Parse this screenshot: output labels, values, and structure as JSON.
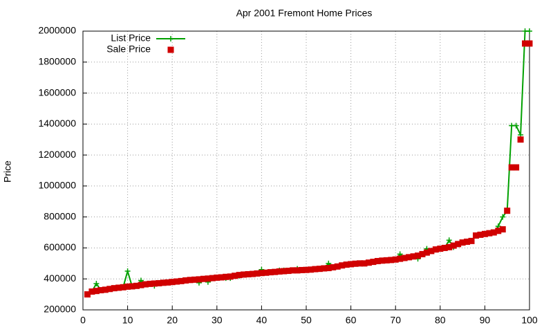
{
  "chart_data": {
    "type": "line",
    "title": "Apr 2001 Fremont Home Prices",
    "y_label": "Price",
    "x": [
      1,
      2,
      3,
      4,
      5,
      6,
      7,
      8,
      9,
      10,
      11,
      12,
      13,
      14,
      15,
      16,
      17,
      18,
      19,
      20,
      21,
      22,
      23,
      24,
      25,
      26,
      27,
      28,
      29,
      30,
      31,
      32,
      33,
      34,
      35,
      36,
      37,
      38,
      39,
      40,
      41,
      42,
      43,
      44,
      45,
      46,
      47,
      48,
      49,
      50,
      51,
      52,
      53,
      54,
      55,
      56,
      57,
      58,
      59,
      60,
      61,
      62,
      63,
      64,
      65,
      66,
      67,
      68,
      69,
      70,
      71,
      72,
      73,
      74,
      75,
      76,
      77,
      78,
      79,
      80,
      81,
      82,
      83,
      84,
      85,
      86,
      87,
      88,
      89,
      90,
      91,
      92,
      93,
      94,
      95,
      96,
      97,
      98,
      99,
      100
    ],
    "series": [
      {
        "name": "List Price",
        "color": "#00a000",
        "style": "linespoints",
        "values": [
          300000,
          318000,
          370000,
          327000,
          330000,
          335000,
          340000,
          343000,
          346000,
          450000,
          352000,
          355000,
          390000,
          365000,
          368000,
          355000,
          372000,
          375000,
          377000,
          380000,
          383000,
          386000,
          390000,
          393000,
          395000,
          375000,
          400000,
          380000,
          405000,
          408000,
          410000,
          405000,
          405000,
          420000,
          420000,
          428000,
          430000,
          432000,
          435000,
          460000,
          440000,
          443000,
          445000,
          455000,
          455000,
          452000,
          455000,
          465000,
          457000,
          458000,
          460000,
          463000,
          465000,
          468000,
          500000,
          475000,
          480000,
          487000,
          492000,
          495000,
          498000,
          500000,
          500000,
          505000,
          510000,
          515000,
          518000,
          520000,
          522000,
          525000,
          560000,
          535000,
          540000,
          545000,
          530000,
          560000,
          595000,
          580000,
          590000,
          595000,
          600000,
          650000,
          605000,
          625000,
          635000,
          640000,
          645000,
          680000,
          685000,
          690000,
          695000,
          700000,
          740000,
          800000,
          840000,
          1390000,
          1390000,
          1330000,
          2000000,
          2000000
        ]
      },
      {
        "name": "Sale Price",
        "color": "#d00000",
        "style": "points",
        "values": [
          300000,
          318000,
          322000,
          327000,
          330000,
          335000,
          340000,
          343000,
          346000,
          350000,
          352000,
          355000,
          360000,
          365000,
          368000,
          370000,
          372000,
          375000,
          377000,
          380000,
          383000,
          386000,
          390000,
          393000,
          395000,
          397000,
          400000,
          402000,
          405000,
          408000,
          410000,
          413000,
          415000,
          420000,
          425000,
          428000,
          430000,
          432000,
          435000,
          438000,
          440000,
          443000,
          445000,
          448000,
          450000,
          452000,
          455000,
          455000,
          457000,
          458000,
          460000,
          463000,
          465000,
          468000,
          470000,
          475000,
          480000,
          487000,
          492000,
          495000,
          498000,
          500000,
          500000,
          505000,
          510000,
          515000,
          518000,
          520000,
          522000,
          525000,
          530000,
          535000,
          540000,
          545000,
          550000,
          560000,
          570000,
          580000,
          590000,
          595000,
          600000,
          605000,
          615000,
          625000,
          635000,
          640000,
          645000,
          680000,
          685000,
          690000,
          695000,
          700000,
          710000,
          720000,
          840000,
          1120000,
          1120000,
          1300000,
          1920000,
          1920000
        ]
      }
    ],
    "xlim": [
      0,
      100
    ],
    "xticks": [
      0,
      10,
      20,
      30,
      40,
      50,
      60,
      70,
      80,
      90,
      100
    ],
    "ylim": [
      200000,
      2000000
    ],
    "yticks": [
      200000,
      400000,
      600000,
      800000,
      1000000,
      1200000,
      1400000,
      1600000,
      1800000,
      2000000
    ],
    "grid": true,
    "legend": "top-left"
  }
}
